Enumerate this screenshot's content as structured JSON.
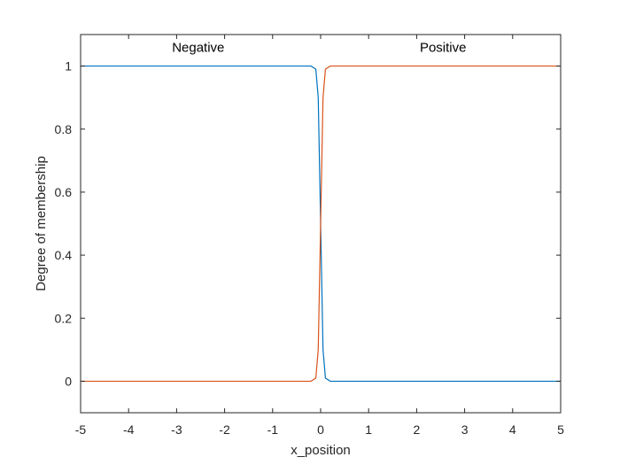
{
  "chart_data": {
    "type": "line",
    "xlabel": "x_position",
    "ylabel": "Degree of membership",
    "xlim": [
      -5,
      5
    ],
    "ylim": [
      -0.1,
      1.1
    ],
    "xticks": [
      -5,
      -4,
      -3,
      -2,
      -1,
      0,
      1,
      2,
      3,
      4,
      5
    ],
    "yticks": [
      0,
      0.2,
      0.4,
      0.6,
      0.8,
      1
    ],
    "grid": false,
    "series": [
      {
        "name": "Negative",
        "color": "#0072BD",
        "x": [
          -5,
          -0.2,
          -0.1,
          -0.05,
          0,
          0.05,
          0.1,
          0.2,
          5
        ],
        "y": [
          1,
          1,
          0.99,
          0.9,
          0.5,
          0.1,
          0.01,
          0,
          0
        ]
      },
      {
        "name": "Positive",
        "color": "#D95319",
        "x": [
          -5,
          -0.2,
          -0.1,
          -0.05,
          0,
          0.05,
          0.1,
          0.2,
          5
        ],
        "y": [
          0,
          0,
          0.01,
          0.1,
          0.5,
          0.9,
          0.99,
          1,
          1
        ]
      }
    ],
    "annotations": [
      {
        "text": "Negative",
        "x": -2.55,
        "y": 1.045
      },
      {
        "text": "Positive",
        "x": 2.55,
        "y": 1.045
      }
    ]
  }
}
